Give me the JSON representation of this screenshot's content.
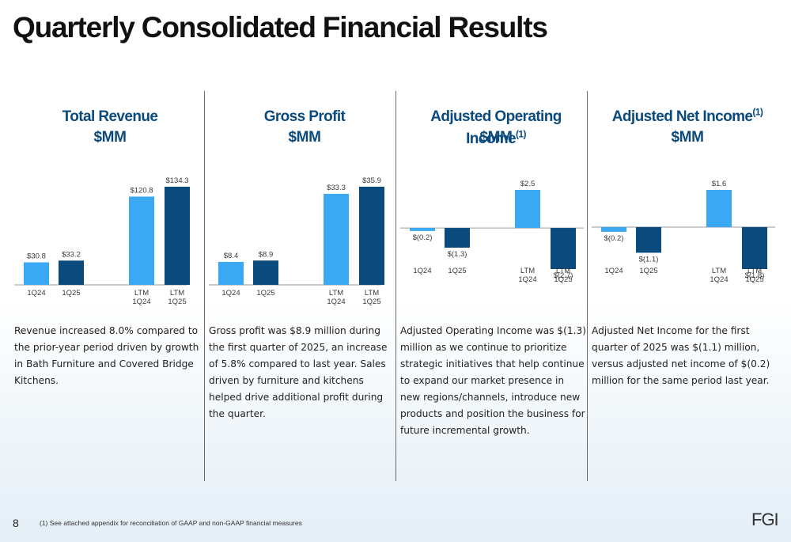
{
  "page": {
    "title": "Quarterly Consolidated Financial Results",
    "page_number": "8",
    "footnote": "(1) See attached appendix for reconciliation of GAAP and non-GAAP financial measures",
    "logo_text": "FGI"
  },
  "colors": {
    "light_bar": "#3aa8f2",
    "dark_bar": "#0b4a7c",
    "title": "#0b4a7c"
  },
  "panels": [
    {
      "title": "Total Revenue",
      "footnote_mark": "",
      "unit": "$MM",
      "description": "Revenue increased 8.0% compared to the prior-year period driven by growth in Bath Furniture and Covered Bridge Kitchens."
    },
    {
      "title": "Gross Profit",
      "footnote_mark": "",
      "unit": "$MM",
      "description": "Gross profit was $8.9 million during the first quarter of 2025, an increase of 5.8% compared to last year. Sales driven by furniture and kitchens helped drive additional profit during the quarter."
    },
    {
      "title": "Adjusted Operating Income",
      "footnote_mark": "(1)",
      "unit": "$MM",
      "description": "Adjusted Operating Income was $(1.3) million as we continue to prioritize strategic initiatives that help continue to expand our market presence in new regions/channels, introduce new products and position the business for future incremental growth."
    },
    {
      "title": "Adjusted Net Income",
      "footnote_mark": "(1)",
      "unit": "$MM",
      "description": "Adjusted Net Income for the first quarter of 2025 was $(1.1) million, versus adjusted net income of $(0.2) million for the same period last year."
    }
  ],
  "chart_data": [
    {
      "type": "bar",
      "title": "Total Revenue",
      "unit": "$MM",
      "categories": [
        "1Q24",
        "1Q25",
        "LTM 1Q24",
        "LTM 1Q25"
      ],
      "values": [
        30.8,
        33.2,
        120.8,
        134.3
      ],
      "labels": [
        "$30.8",
        "$33.2",
        "$120.8",
        "$134.3"
      ],
      "ylim": [
        0,
        134.3
      ]
    },
    {
      "type": "bar",
      "title": "Gross Profit",
      "unit": "$MM",
      "categories": [
        "1Q24",
        "1Q25",
        "LTM 1Q24",
        "LTM 1Q25"
      ],
      "values": [
        8.4,
        8.9,
        33.3,
        35.9
      ],
      "labels": [
        "$8.4",
        "$8.9",
        "$33.3",
        "$35.9"
      ],
      "ylim": [
        0,
        35.9
      ]
    },
    {
      "type": "bar",
      "title": "Adjusted Operating Income",
      "unit": "$MM",
      "categories": [
        "1Q24",
        "1Q25",
        "LTM 1Q24",
        "LTM 1Q25"
      ],
      "values": [
        -0.2,
        -1.3,
        2.5,
        -2.7
      ],
      "labels": [
        "$(0.2)",
        "$(1.3)",
        "$2.5",
        "$(2.7)"
      ],
      "ylim": [
        -2.7,
        2.5
      ]
    },
    {
      "type": "bar",
      "title": "Adjusted Net Income",
      "unit": "$MM",
      "categories": [
        "1Q24",
        "1Q25",
        "LTM 1Q24",
        "LTM 1Q25"
      ],
      "values": [
        -0.2,
        -1.1,
        1.6,
        -1.8
      ],
      "labels": [
        "$(0.2)",
        "$(1.1)",
        "$1.6",
        "$(1.8)"
      ],
      "ylim": [
        -1.8,
        1.6
      ]
    }
  ]
}
